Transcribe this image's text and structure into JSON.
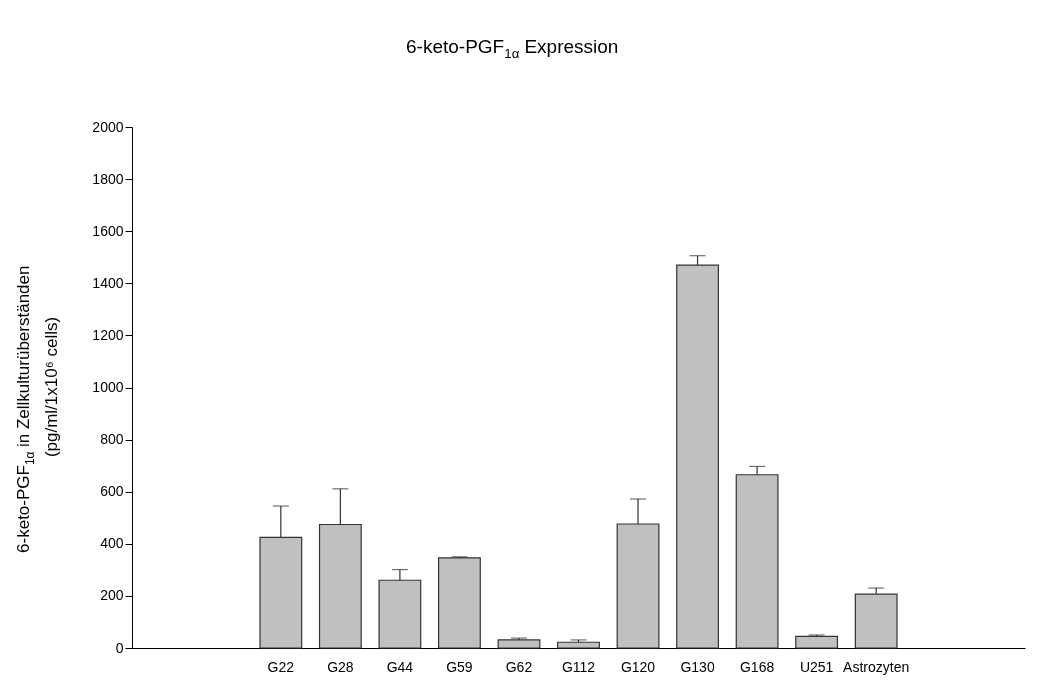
{
  "chart_data": {
    "type": "bar",
    "title": "6-keto-PGF$_{1α}$ Expression",
    "ylabel": "6-keto-PGF$_{1α}$ in Zellkulturüberständen\n(pg/ml/1x10⁶ cells)",
    "categories": [
      null,
      null,
      "G22",
      "G28",
      "G44",
      "G59",
      "G62",
      "G112",
      "G120",
      "G130",
      "G168",
      "U251",
      "Astrozyten",
      null,
      null
    ],
    "series": [
      {
        "color": "#c0c0c0",
        "values": [
          null,
          null,
          425,
          474,
          260,
          346,
          31,
          22,
          476,
          1470,
          665,
          45,
          207,
          null,
          null
        ],
        "errors": [
          null,
          null,
          [
            425,
            545
          ],
          [
            474,
            611
          ],
          [
            260,
            301
          ],
          [
            346,
            350
          ],
          [
            31,
            38
          ],
          [
            22,
            31
          ],
          [
            476,
            572
          ],
          [
            1470,
            1506
          ],
          [
            665,
            697
          ],
          [
            45,
            50
          ],
          [
            207,
            230
          ],
          null,
          null
        ]
      }
    ],
    "ylim": [
      0,
      2000
    ],
    "yticks": [
      0,
      200,
      400,
      600,
      800,
      1000,
      1200,
      1400,
      1600,
      1800,
      2000
    ],
    "grid": false
  }
}
